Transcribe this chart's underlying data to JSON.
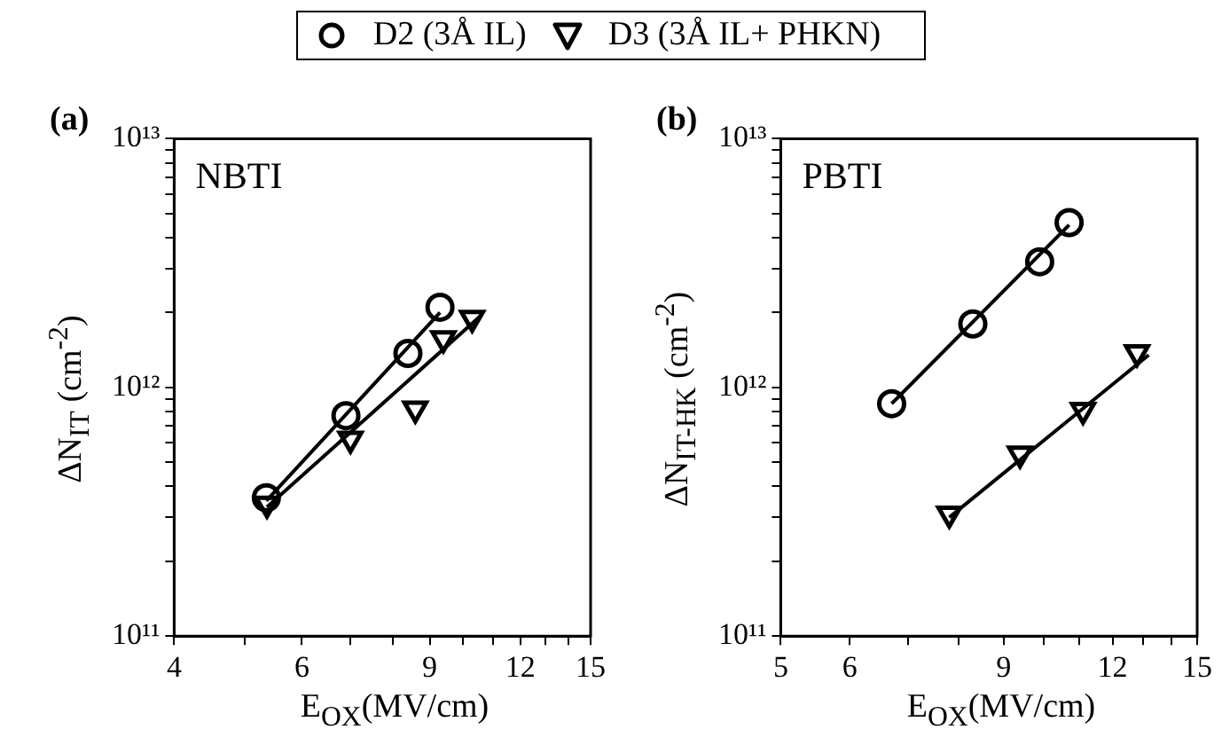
{
  "chart_data": [
    {
      "type": "scatter",
      "title": "(a)",
      "xlabel": "E$_{OX}$(MV/cm)",
      "ylabel": "ΔN$_{IT}$ (cm$^{-2}$)",
      "annotations": [
        "NBTI"
      ],
      "log": "xy",
      "legend": "top",
      "xlim": [
        4,
        15
      ],
      "xticks": [
        4,
        {
          "value": 5,
          "label": null
        },
        6,
        {
          "value": 7,
          "label": null
        },
        {
          "value": 8,
          "label": null
        },
        9,
        {
          "value": 10,
          "label": null
        },
        {
          "value": 11,
          "label": null
        },
        12,
        {
          "value": 13,
          "label": null
        },
        {
          "value": 14,
          "label": null
        },
        15
      ],
      "ylim": [
        100000000000.0,
        10000000000000.0
      ],
      "yticks": [
        {
          "value": 100000000000.0,
          "label": "10¹¹"
        },
        {
          "value": 200000000000.0,
          "label": null
        },
        {
          "value": 300000000000.0,
          "label": null
        },
        {
          "value": 400000000000.0,
          "label": null
        },
        {
          "value": 500000000000.0,
          "label": null
        },
        {
          "value": 600000000000.0,
          "label": null
        },
        {
          "value": 700000000000.0,
          "label": null
        },
        {
          "value": 800000000000.0,
          "label": null
        },
        {
          "value": 900000000000.0,
          "label": null
        },
        {
          "value": 1000000000000.0,
          "label": "10¹²"
        },
        {
          "value": 2000000000000.0,
          "label": null
        },
        {
          "value": 3000000000000.0,
          "label": null
        },
        {
          "value": 4000000000000.0,
          "label": null
        },
        {
          "value": 5000000000000.0,
          "label": null
        },
        {
          "value": 6000000000000.0,
          "label": null
        },
        {
          "value": 7000000000000.0,
          "label": null
        },
        {
          "value": 8000000000000.0,
          "label": null
        },
        {
          "value": 9000000000000.0,
          "label": null
        },
        {
          "value": 10000000000000.0,
          "label": "10¹³"
        }
      ],
      "series": [
        {
          "name": "D2 (3Å IL)",
          "type": "scatter",
          "marker": "circle",
          "color": "#000000",
          "x": [
            5.36,
            6.9,
            8.4,
            9.3
          ],
          "values": [
            360000000000.0,
            770000000000.0,
            1370000000000.0,
            2100000000000.0
          ]
        },
        {
          "name": "D3 (3Å IL+ PHKN)",
          "type": "scatter",
          "marker": "triangle",
          "color": "#000000",
          "x": [
            5.37,
            7.0,
            8.6,
            9.4,
            10.3
          ],
          "values": [
            340000000000.0,
            620000000000.0,
            820000000000.0,
            1570000000000.0,
            1900000000000.0
          ]
        },
        {
          "type": "line",
          "marker": "none",
          "color": "#000000",
          "x": [
            5.36,
            9.3
          ],
          "values": [
            350000000000.0,
            2000000000000.0
          ]
        },
        {
          "type": "line",
          "marker": "none",
          "color": "#000000",
          "x": [
            5.37,
            10.6
          ],
          "values": [
            330000000000.0,
            1950000000000.0
          ]
        }
      ]
    },
    {
      "type": "scatter",
      "title": "(b)",
      "xlabel": "E$_{OX}$(MV/cm)",
      "ylabel": "ΔN$_{IT-HK}$ (cm$^{-2}$)",
      "annotations": [
        "PBTI"
      ],
      "log": "xy",
      "xlim": [
        5,
        15
      ],
      "xticks": [
        5,
        6,
        {
          "value": 7,
          "label": null
        },
        {
          "value": 8,
          "label": null
        },
        9,
        {
          "value": 10,
          "label": null
        },
        {
          "value": 11,
          "label": null
        },
        12,
        {
          "value": 13,
          "label": null
        },
        {
          "value": 14,
          "label": null
        },
        15
      ],
      "ylim": [
        100000000000.0,
        10000000000000.0
      ],
      "yticks": [
        {
          "value": 100000000000.0,
          "label": "10¹¹"
        },
        {
          "value": 200000000000.0,
          "label": null
        },
        {
          "value": 300000000000.0,
          "label": null
        },
        {
          "value": 400000000000.0,
          "label": null
        },
        {
          "value": 500000000000.0,
          "label": null
        },
        {
          "value": 600000000000.0,
          "label": null
        },
        {
          "value": 700000000000.0,
          "label": null
        },
        {
          "value": 800000000000.0,
          "label": null
        },
        {
          "value": 900000000000.0,
          "label": null
        },
        {
          "value": 1000000000000.0,
          "label": "10¹²"
        },
        {
          "value": 2000000000000.0,
          "label": null
        },
        {
          "value": 3000000000000.0,
          "label": null
        },
        {
          "value": 4000000000000.0,
          "label": null
        },
        {
          "value": 5000000000000.0,
          "label": null
        },
        {
          "value": 6000000000000.0,
          "label": null
        },
        {
          "value": 7000000000000.0,
          "label": null
        },
        {
          "value": 8000000000000.0,
          "label": null
        },
        {
          "value": 9000000000000.0,
          "label": null
        },
        {
          "value": 10000000000000.0,
          "label": "10¹³"
        }
      ],
      "series": [
        {
          "type": "scatter",
          "marker": "circle",
          "color": "#000000",
          "x": [
            6.7,
            8.3,
            9.9,
            10.7
          ],
          "values": [
            860000000000.0,
            1800000000000.0,
            3200000000000.0,
            4600000000000.0
          ]
        },
        {
          "type": "scatter",
          "marker": "triangle",
          "color": "#000000",
          "x": [
            7.8,
            9.4,
            11.1,
            12.8
          ],
          "values": [
            310000000000.0,
            540000000000.0,
            810000000000.0,
            1380000000000.0
          ]
        },
        {
          "type": "line",
          "marker": "none",
          "color": "#000000",
          "x": [
            6.7,
            10.7
          ],
          "values": [
            860000000000.0,
            4500000000000.0
          ]
        },
        {
          "type": "line",
          "marker": "none",
          "color": "#000000",
          "x": [
            7.8,
            13.2
          ],
          "values": [
            300000000000.0,
            1350000000000.0
          ]
        }
      ]
    }
  ]
}
